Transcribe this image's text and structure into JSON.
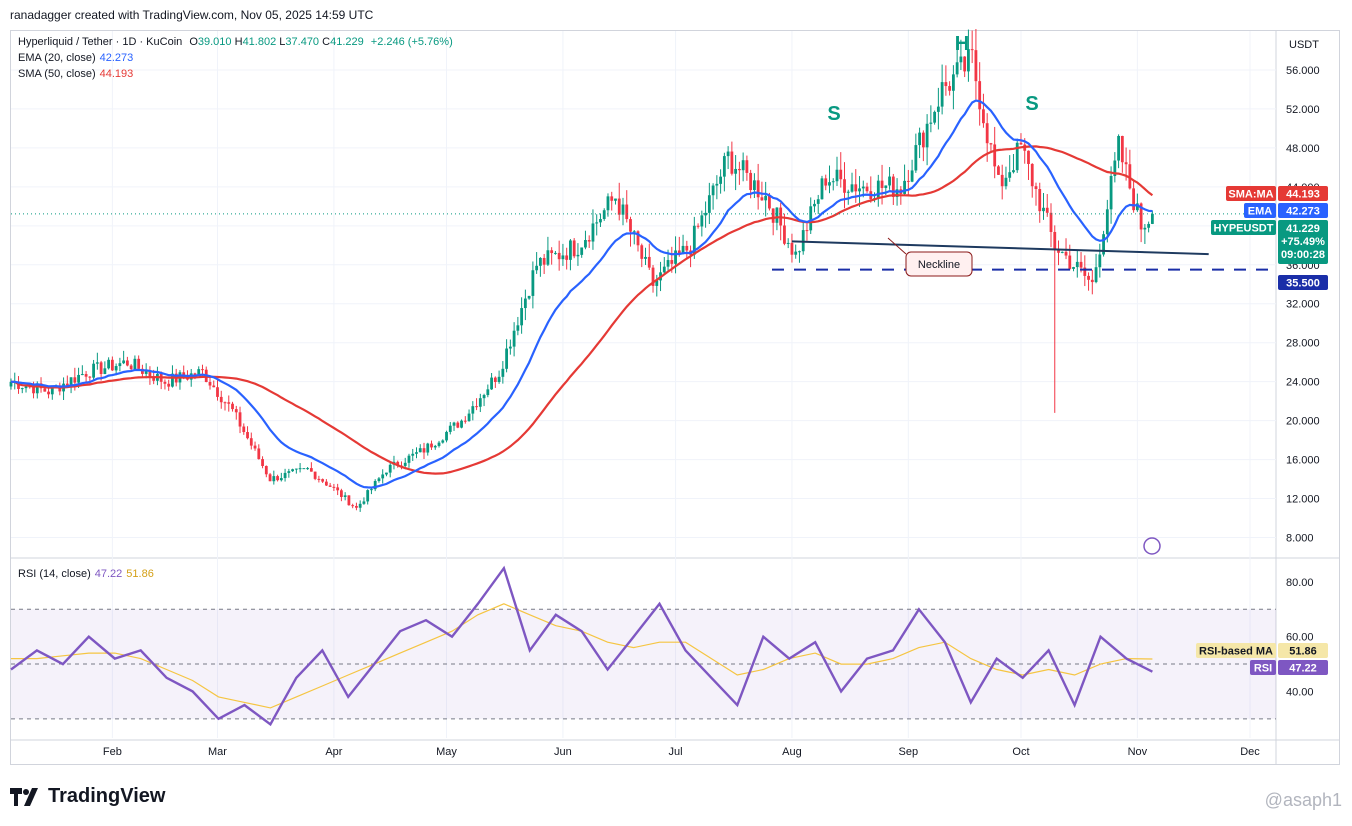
{
  "header": {
    "note": "ranadagger created with TradingView.com, Nov 05, 2025 14:59 UTC",
    "symbol": "Hyperliquid / Tether · 1D · KuCoin",
    "ohlc": {
      "o_label": "O",
      "o": "39.010",
      "h_label": "H",
      "h": "41.802",
      "l_label": "L",
      "l": "37.470",
      "c_label": "C",
      "c": "41.229",
      "change": "+2.246 (+5.76%)"
    },
    "ema_label": "EMA (20, close)",
    "ema_value": "42.273",
    "sma_label": "SMA (50, close)",
    "sma_value": "44.193",
    "currency": "USDT"
  },
  "rsi_legend": {
    "label": "RSI (14, close)",
    "rsi": "47.22",
    "ma": "51.86"
  },
  "badges": {
    "sma": {
      "label": "SMA:MA",
      "value": "44.193"
    },
    "ema": {
      "label": "EMA",
      "value": "42.273"
    },
    "price": {
      "label": "HYPEUSDT",
      "value": "41.229",
      "change": "+75.49%",
      "countdown": "09:00:28"
    },
    "support": {
      "value": "35.500"
    },
    "rsi_ma": {
      "label": "RSI-based MA",
      "value": "51.86"
    },
    "rsi": {
      "label": "RSI",
      "value": "47.22"
    }
  },
  "colors": {
    "up": "#089981",
    "down": "#f23645",
    "ema": "#2962ff",
    "sma": "#e53935",
    "rsi": "#7e57c2",
    "rsi_ma": "#f5c542",
    "neckline": "#1e3a5f",
    "support": "#1a2ea8",
    "pattern": "#089981"
  },
  "chart_data": [
    {
      "type": "candlestick",
      "title": "Hyperliquid / Tether · 1D · KuCoin",
      "x_labels": [
        "Feb",
        "Mar",
        "Apr",
        "May",
        "Jun",
        "Jul",
        "Aug",
        "Sep",
        "Oct",
        "Nov",
        "Dec"
      ],
      "y_ticks": [
        "56.000",
        "52.000",
        "48.000",
        "44.000",
        "40.000",
        "36.000",
        "32.000",
        "28.000",
        "24.000",
        "20.000",
        "16.000",
        "12.000",
        "8.000"
      ],
      "ylim": [
        6,
        60
      ],
      "close_path_approx": [
        [
          "Jan 05",
          24
        ],
        [
          "Jan 15",
          23
        ],
        [
          "Jan 25",
          25
        ],
        [
          "Feb 05",
          26
        ],
        [
          "Feb 15",
          24
        ],
        [
          "Feb 25",
          25
        ],
        [
          "Mar 05",
          21
        ],
        [
          "Mar 15",
          14
        ],
        [
          "Mar 25",
          15
        ],
        [
          "Apr 01",
          13
        ],
        [
          "Apr 07",
          11
        ],
        [
          "Apr 15",
          15
        ],
        [
          "Apr 25",
          17
        ],
        [
          "May 05",
          20
        ],
        [
          "May 15",
          25
        ],
        [
          "May 25",
          36
        ],
        [
          "Jun 05",
          38
        ],
        [
          "Jun 15",
          43
        ],
        [
          "Jun 25",
          34
        ],
        [
          "Jul 05",
          38
        ],
        [
          "Jul 15",
          47
        ],
        [
          "Jul 25",
          43
        ],
        [
          "Aug 02",
          37
        ],
        [
          "Aug 10",
          45
        ],
        [
          "Aug 20",
          44
        ],
        [
          "Aug 30",
          44
        ],
        [
          "Sep 10",
          54
        ],
        [
          "Sep 18",
          57
        ],
        [
          "Sep 25",
          44
        ],
        [
          "Oct 01",
          48
        ],
        [
          "Oct 10",
          38
        ],
        [
          "Oct 20",
          34
        ],
        [
          "Oct 27",
          48
        ],
        [
          "Nov 02",
          40
        ],
        [
          "Nov 05",
          41.229
        ]
      ],
      "wick_low_oct10": 20.8,
      "annotations": [
        {
          "text": "S",
          "role": "left shoulder"
        },
        {
          "text": "H",
          "role": "head"
        },
        {
          "text": "S",
          "role": "right shoulder"
        },
        {
          "text": "Neckline",
          "role": "neckline label"
        }
      ],
      "neckline": {
        "start": [
          "Aug 01",
          38.4
        ],
        "end": [
          "Nov 20",
          37.1
        ]
      },
      "support_level": 35.5
    },
    {
      "type": "line",
      "title": "RSI (14, close)",
      "y_ticks": [
        "80.00",
        "60.00",
        "40.00"
      ],
      "ylim": [
        23,
        88
      ],
      "bands": [
        30,
        70
      ],
      "series": [
        {
          "name": "RSI",
          "values": [
            48,
            55,
            50,
            60,
            52,
            55,
            45,
            40,
            30,
            35,
            28,
            45,
            55,
            38,
            50,
            62,
            66,
            60,
            72,
            85,
            55,
            68,
            62,
            48,
            60,
            72,
            55,
            45,
            35,
            60,
            52,
            58,
            40,
            52,
            55,
            70,
            58,
            36,
            52,
            45,
            55,
            35,
            60,
            52,
            47.22
          ]
        },
        {
          "name": "RSI-based MA",
          "values": [
            52,
            52,
            53,
            54,
            54,
            52,
            48,
            44,
            38,
            36,
            34,
            38,
            42,
            46,
            50,
            54,
            58,
            62,
            68,
            72,
            68,
            64,
            62,
            58,
            56,
            58,
            58,
            52,
            46,
            48,
            52,
            54,
            50,
            50,
            52,
            56,
            58,
            52,
            48,
            46,
            48,
            46,
            50,
            52,
            51.86
          ]
        }
      ]
    }
  ],
  "brand": {
    "name": "TradingView",
    "watermark": "@asaph1"
  }
}
